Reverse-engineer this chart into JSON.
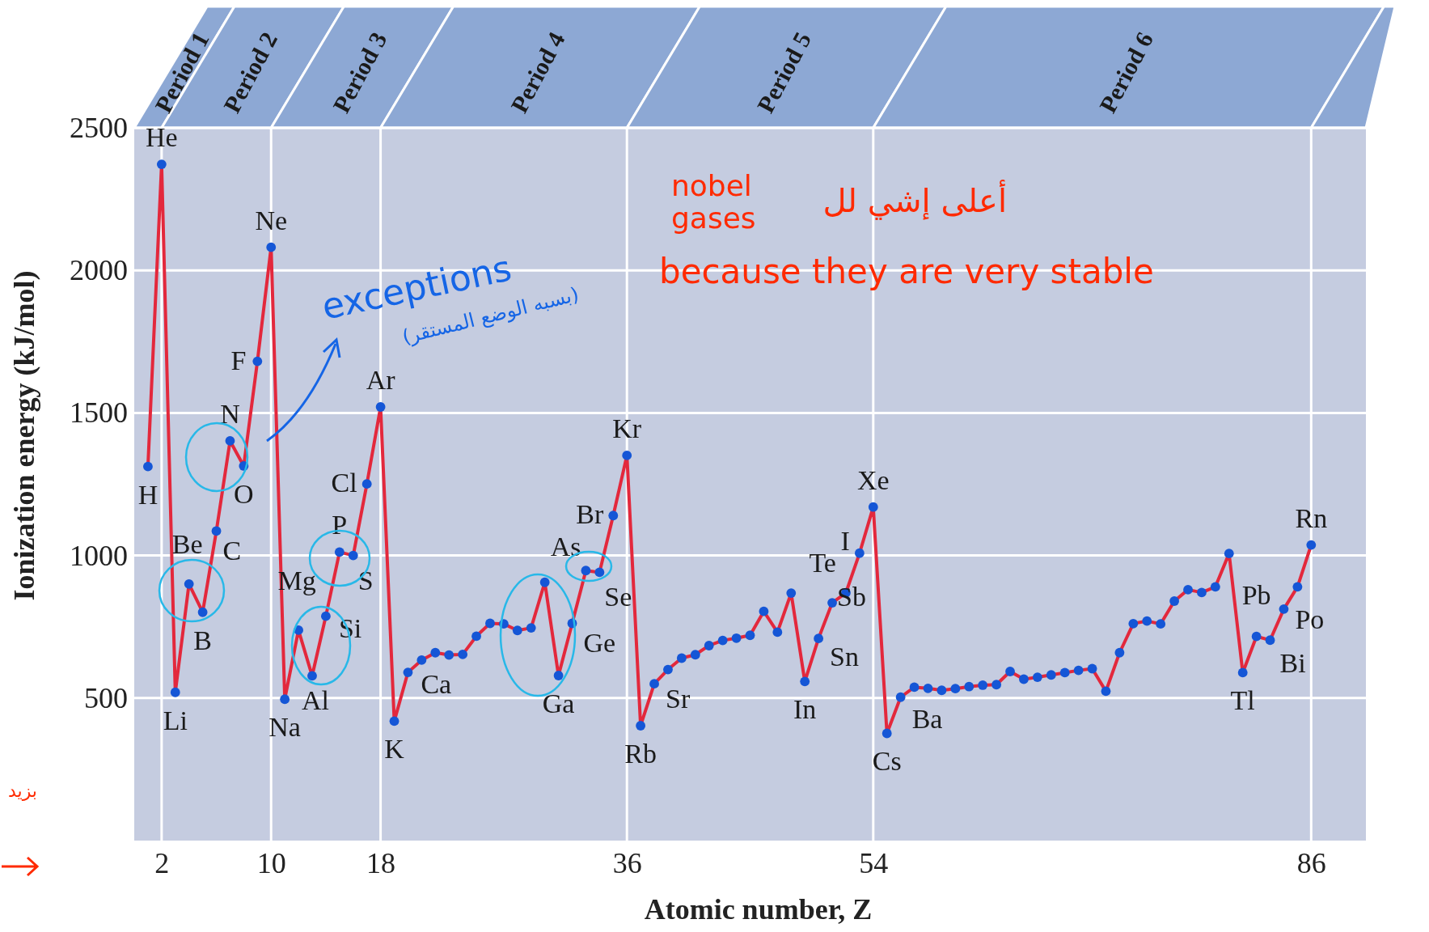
{
  "chart_data": {
    "type": "line",
    "xlabel": "Atomic number, Z",
    "ylabel": "Ionization energy (kJ/mol)",
    "x": [
      1,
      2,
      3,
      4,
      5,
      6,
      7,
      8,
      9,
      10,
      11,
      12,
      13,
      14,
      15,
      16,
      17,
      18,
      19,
      20,
      21,
      22,
      23,
      24,
      25,
      26,
      27,
      28,
      29,
      30,
      31,
      32,
      33,
      34,
      35,
      36,
      37,
      38,
      39,
      40,
      41,
      42,
      43,
      44,
      45,
      46,
      47,
      48,
      49,
      50,
      51,
      52,
      53,
      54,
      55,
      56,
      57,
      58,
      59,
      60,
      61,
      62,
      63,
      64,
      65,
      66,
      67,
      68,
      69,
      70,
      71,
      72,
      73,
      74,
      75,
      76,
      77,
      78,
      79,
      80,
      81,
      82,
      83,
      84,
      85,
      86
    ],
    "series": [
      {
        "color": "#e3283c",
        "values": [
          1312,
          2372,
          520,
          900,
          801,
          1086,
          1402,
          1314,
          1681,
          2081,
          496,
          738,
          578,
          787,
          1012,
          1000,
          1251,
          1521,
          419,
          590,
          633,
          659,
          651,
          653,
          717,
          762,
          760,
          737,
          746,
          906,
          579,
          762,
          947,
          941,
          1140,
          1351,
          403,
          550,
          600,
          640,
          652,
          684,
          702,
          710,
          720,
          804,
          731,
          868,
          558,
          709,
          834,
          869,
          1008,
          1170,
          376,
          503,
          538,
          534,
          527,
          533,
          540,
          545,
          547,
          593,
          566,
          573,
          581,
          589,
          597,
          603,
          524,
          659,
          761,
          770,
          760,
          840,
          880,
          870,
          890,
          1007,
          589,
          716,
          703,
          812,
          890,
          1037
        ]
      }
    ],
    "marker": "circle",
    "xlim": [
      0,
      90
    ],
    "xticks": [
      2,
      10,
      18,
      36,
      54,
      86
    ],
    "ylim": [
      0,
      2500
    ],
    "yticks": [
      500,
      1000,
      1500,
      2000,
      2500
    ],
    "grid": true,
    "annotations": [
      {
        "text": "H",
        "x": 1,
        "y": 1312
      },
      {
        "text": "He",
        "x": 2,
        "y": 2372
      },
      {
        "text": "Li",
        "x": 3,
        "y": 520
      },
      {
        "text": "Be",
        "x": 4,
        "y": 900
      },
      {
        "text": "B",
        "x": 5,
        "y": 801
      },
      {
        "text": "C",
        "x": 6,
        "y": 1086
      },
      {
        "text": "N",
        "x": 7,
        "y": 1402
      },
      {
        "text": "O",
        "x": 8,
        "y": 1314
      },
      {
        "text": "F",
        "x": 9,
        "y": 1681
      },
      {
        "text": "Ne",
        "x": 10,
        "y": 2081
      },
      {
        "text": "Na",
        "x": 11,
        "y": 496
      },
      {
        "text": "Mg",
        "x": 12,
        "y": 738
      },
      {
        "text": "Al",
        "x": 13,
        "y": 578
      },
      {
        "text": "Si",
        "x": 14,
        "y": 787
      },
      {
        "text": "P",
        "x": 15,
        "y": 1012
      },
      {
        "text": "S",
        "x": 16,
        "y": 1000
      },
      {
        "text": "Cl",
        "x": 17,
        "y": 1251
      },
      {
        "text": "Ar",
        "x": 18,
        "y": 1521
      },
      {
        "text": "K",
        "x": 19,
        "y": 419
      },
      {
        "text": "Ca",
        "x": 20,
        "y": 590
      },
      {
        "text": "Ga",
        "x": 31,
        "y": 579
      },
      {
        "text": "Ge",
        "x": 32,
        "y": 762
      },
      {
        "text": "As",
        "x": 33,
        "y": 947
      },
      {
        "text": "Se",
        "x": 34,
        "y": 941
      },
      {
        "text": "Br",
        "x": 35,
        "y": 1140
      },
      {
        "text": "Kr",
        "x": 36,
        "y": 1351
      },
      {
        "text": "Rb",
        "x": 37,
        "y": 403
      },
      {
        "text": "Sr",
        "x": 38,
        "y": 550
      },
      {
        "text": "In",
        "x": 49,
        "y": 558
      },
      {
        "text": "Sn",
        "x": 50,
        "y": 709
      },
      {
        "text": "Sb",
        "x": 51,
        "y": 834
      },
      {
        "text": "Te",
        "x": 52,
        "y": 869
      },
      {
        "text": "I",
        "x": 53,
        "y": 1008
      },
      {
        "text": "Xe",
        "x": 54,
        "y": 1170
      },
      {
        "text": "Cs",
        "x": 55,
        "y": 376
      },
      {
        "text": "Ba",
        "x": 56,
        "y": 503
      },
      {
        "text": "Tl",
        "x": 81,
        "y": 589
      },
      {
        "text": "Pb",
        "x": 82,
        "y": 716
      },
      {
        "text": "Bi",
        "x": 83,
        "y": 703
      },
      {
        "text": "Po",
        "x": 84,
        "y": 812
      },
      {
        "text": "Rn",
        "x": 86,
        "y": 1037
      },
      "Period 1",
      "Period 2",
      "Period 3",
      "Period 4",
      "Period 5",
      "Period 6",
      "exceptions",
      "(بسبه الوضع المستقر)",
      "أعلى إشي لل",
      "nobel gases",
      "because they are very stable",
      "بزيد"
    ]
  }
}
